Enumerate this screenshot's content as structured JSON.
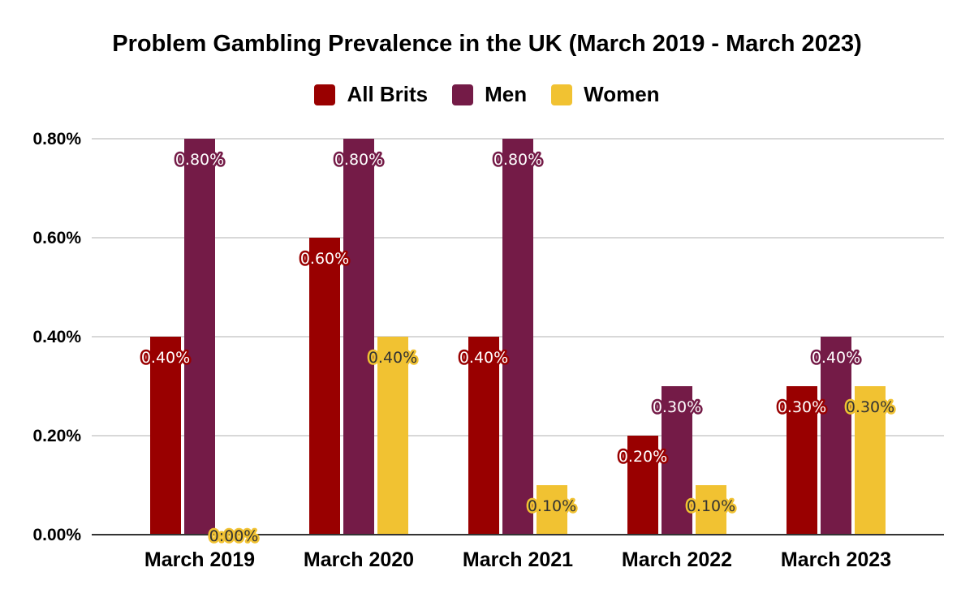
{
  "chart_data": {
    "type": "bar",
    "title": "Problem Gambling Prevalence in the UK (March 2019 - March 2023)",
    "xlabel": "",
    "ylabel": "",
    "categories": [
      "March 2019",
      "March 2020",
      "March 2021",
      "March 2022",
      "March 2023"
    ],
    "series": [
      {
        "name": "All Brits",
        "color": "#990000",
        "values": [
          0.4,
          0.6,
          0.4,
          0.2,
          0.3
        ],
        "labels": [
          "0.40%",
          "0.60%",
          "0.40%",
          "0.20%",
          "0.30%"
        ]
      },
      {
        "name": "Men",
        "color": "#741B47",
        "values": [
          0.8,
          0.8,
          0.8,
          0.3,
          0.4
        ],
        "labels": [
          "0.80%",
          "0.80%",
          "0.80%",
          "0.30%",
          "0.40%"
        ]
      },
      {
        "name": "Women",
        "color": "#F1C232",
        "values": [
          0.0,
          0.4,
          0.1,
          0.1,
          0.3
        ],
        "labels": [
          "0:00%",
          "0.40%",
          "0.10%",
          "0.10%",
          "0.30%"
        ]
      }
    ],
    "ylim": [
      0,
      0.8
    ],
    "yticks": [
      0,
      0.2,
      0.4,
      0.6,
      0.8
    ],
    "ytick_labels": [
      "0.00%",
      "0.20%",
      "0.40%",
      "0.60%",
      "0.80%"
    ],
    "grid": true,
    "legend": "top-center"
  }
}
